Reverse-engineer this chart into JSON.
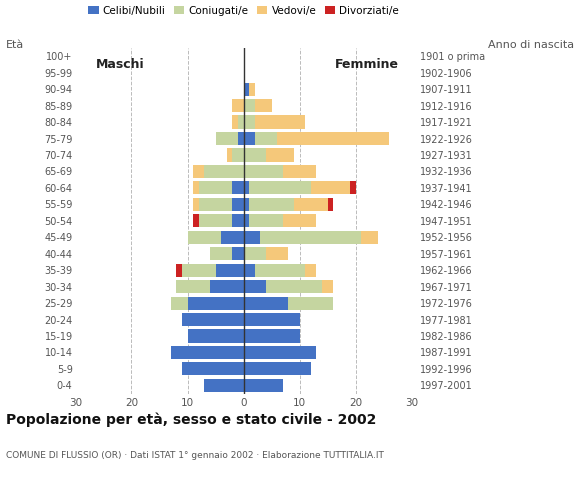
{
  "age_groups": [
    "0-4",
    "5-9",
    "10-14",
    "15-19",
    "20-24",
    "25-29",
    "30-34",
    "35-39",
    "40-44",
    "45-49",
    "50-54",
    "55-59",
    "60-64",
    "65-69",
    "70-74",
    "75-79",
    "80-84",
    "85-89",
    "90-94",
    "95-99",
    "100+"
  ],
  "birth_years": [
    "1997-2001",
    "1992-1996",
    "1987-1991",
    "1982-1986",
    "1977-1981",
    "1972-1976",
    "1967-1971",
    "1962-1966",
    "1957-1961",
    "1952-1956",
    "1947-1951",
    "1942-1946",
    "1937-1941",
    "1932-1936",
    "1927-1931",
    "1922-1926",
    "1917-1921",
    "1912-1916",
    "1907-1911",
    "1902-1906",
    "1901 o prima"
  ],
  "males": {
    "celibi": [
      7,
      11,
      13,
      10,
      11,
      10,
      6,
      5,
      2,
      4,
      2,
      2,
      2,
      0,
      0,
      1,
      0,
      0,
      0,
      0,
      0
    ],
    "coniugati": [
      0,
      0,
      0,
      0,
      0,
      3,
      6,
      6,
      4,
      6,
      6,
      6,
      6,
      7,
      2,
      4,
      1,
      0,
      0,
      0,
      0
    ],
    "vedovi": [
      0,
      0,
      0,
      0,
      0,
      0,
      0,
      0,
      0,
      0,
      0,
      1,
      1,
      2,
      1,
      0,
      1,
      2,
      0,
      0,
      0
    ],
    "divorziati": [
      0,
      0,
      0,
      0,
      0,
      0,
      0,
      1,
      0,
      0,
      1,
      0,
      0,
      0,
      0,
      0,
      0,
      0,
      0,
      0,
      0
    ]
  },
  "females": {
    "nubili": [
      7,
      12,
      13,
      10,
      10,
      8,
      4,
      2,
      0,
      3,
      1,
      1,
      1,
      0,
      0,
      2,
      0,
      0,
      1,
      0,
      0
    ],
    "coniugate": [
      0,
      0,
      0,
      0,
      0,
      8,
      10,
      9,
      4,
      18,
      6,
      8,
      11,
      7,
      4,
      4,
      2,
      2,
      0,
      0,
      0
    ],
    "vedove": [
      0,
      0,
      0,
      0,
      0,
      0,
      2,
      2,
      4,
      3,
      6,
      6,
      7,
      6,
      5,
      20,
      9,
      3,
      1,
      0,
      0
    ],
    "divorziate": [
      0,
      0,
      0,
      0,
      0,
      0,
      0,
      0,
      0,
      0,
      0,
      1,
      1,
      0,
      0,
      0,
      0,
      0,
      0,
      0,
      0
    ]
  },
  "colors": {
    "celibi": "#4472c4",
    "coniugati": "#c5d5a0",
    "vedovi": "#f5c87a",
    "divorziati": "#cc2222"
  },
  "title": "Popolazione per età, sesso e stato civile - 2002",
  "subtitle": "COMUNE DI FLUSSIO (OR) · Dati ISTAT 1° gennaio 2002 · Elaborazione TUTTITALIA.IT",
  "xlabel_left": "Maschi",
  "xlabel_right": "Femmine",
  "xlim": 30,
  "legend_labels": [
    "Celibi/Nubili",
    "Coniugati/e",
    "Vedovi/e",
    "Divorziati/e"
  ],
  "left_axis_label": "Età",
  "right_axis_label": "Anno di nascita"
}
